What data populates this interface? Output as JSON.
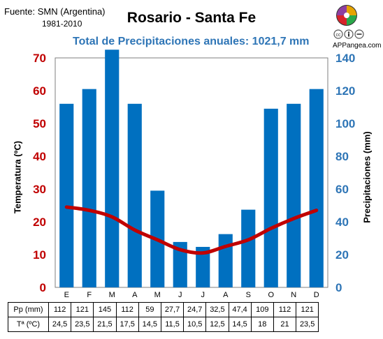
{
  "header": {
    "source": "Fuente: SMN (Argentina)",
    "period": "1981-2010",
    "title": "Rosario - Santa Fe",
    "subtitle": "Total de Precipitaciones anuales: 1021,7 mm",
    "brand": "APPangea.com"
  },
  "colors": {
    "bars": "#0070c0",
    "line": "#c00000",
    "left_axis": "#c00000",
    "right_axis": "#2e75b6",
    "subtitle": "#2e75b6"
  },
  "icons": {
    "logo": "puzzle-globe-logo",
    "license": "creative-commons-icons"
  },
  "chart_data": {
    "type": "bar-line",
    "title": "Rosario - Santa Fe",
    "subtitle": "Total de Precipitaciones anuales: 1021,7 mm",
    "categories": [
      "E",
      "F",
      "M",
      "A",
      "M",
      "J",
      "J",
      "A",
      "S",
      "O",
      "N",
      "D"
    ],
    "series": [
      {
        "name": "Pp (mm)",
        "type": "bar",
        "axis": "right",
        "values": [
          112,
          121,
          145,
          112,
          59,
          27.7,
          24.7,
          32.5,
          47.4,
          109,
          112,
          121
        ]
      },
      {
        "name": "Tª (ºC)",
        "type": "line",
        "axis": "left",
        "values": [
          24.5,
          23.5,
          21.5,
          17.5,
          14.5,
          11.5,
          10.5,
          12.5,
          14.5,
          18,
          21,
          23.5
        ]
      }
    ],
    "ylabel_left": "Temperatura (ºC)",
    "ylabel_right": "Precipitaciones (mm)",
    "ylim_left": [
      0,
      70
    ],
    "ylim_right": [
      0,
      140
    ],
    "yticks_left": [
      0,
      10,
      20,
      30,
      40,
      50,
      60,
      70
    ],
    "yticks_right": [
      0,
      20,
      40,
      60,
      80,
      100,
      120,
      140
    ],
    "grid": false,
    "legend": "none",
    "table": {
      "rows": [
        {
          "label": "Pp (mm)",
          "values": [
            "112",
            "121",
            "145",
            "112",
            "59",
            "27,7",
            "24,7",
            "32,5",
            "47,4",
            "109",
            "112",
            "121"
          ]
        },
        {
          "label": "Tª (ºC)",
          "values": [
            "24,5",
            "23,5",
            "21,5",
            "17,5",
            "14,5",
            "11,5",
            "10,5",
            "12,5",
            "14,5",
            "18",
            "21",
            "23,5"
          ]
        }
      ]
    }
  }
}
